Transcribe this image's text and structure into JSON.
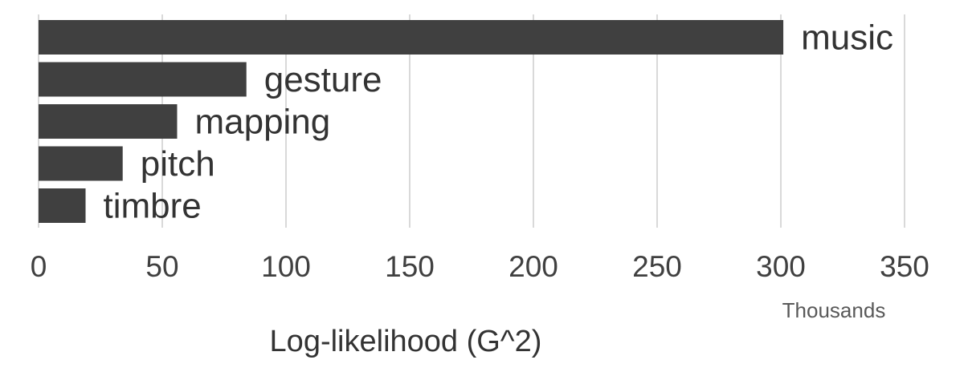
{
  "chart_data": {
    "type": "bar",
    "orientation": "horizontal",
    "categories": [
      "music",
      "gesture",
      "mapping",
      "pitch",
      "timbre"
    ],
    "values": [
      301,
      84,
      56,
      34,
      19
    ],
    "value_units": "Thousands",
    "xlabel": "Log-likelihood (G^2)",
    "ylabel": "",
    "xlim": [
      0,
      350
    ],
    "x_ticks": [
      0,
      50,
      100,
      150,
      200,
      250,
      300,
      350
    ],
    "grid": "vertical",
    "legend": "none",
    "bar_color": "#404040",
    "grid_color": "#d9d9d9"
  }
}
